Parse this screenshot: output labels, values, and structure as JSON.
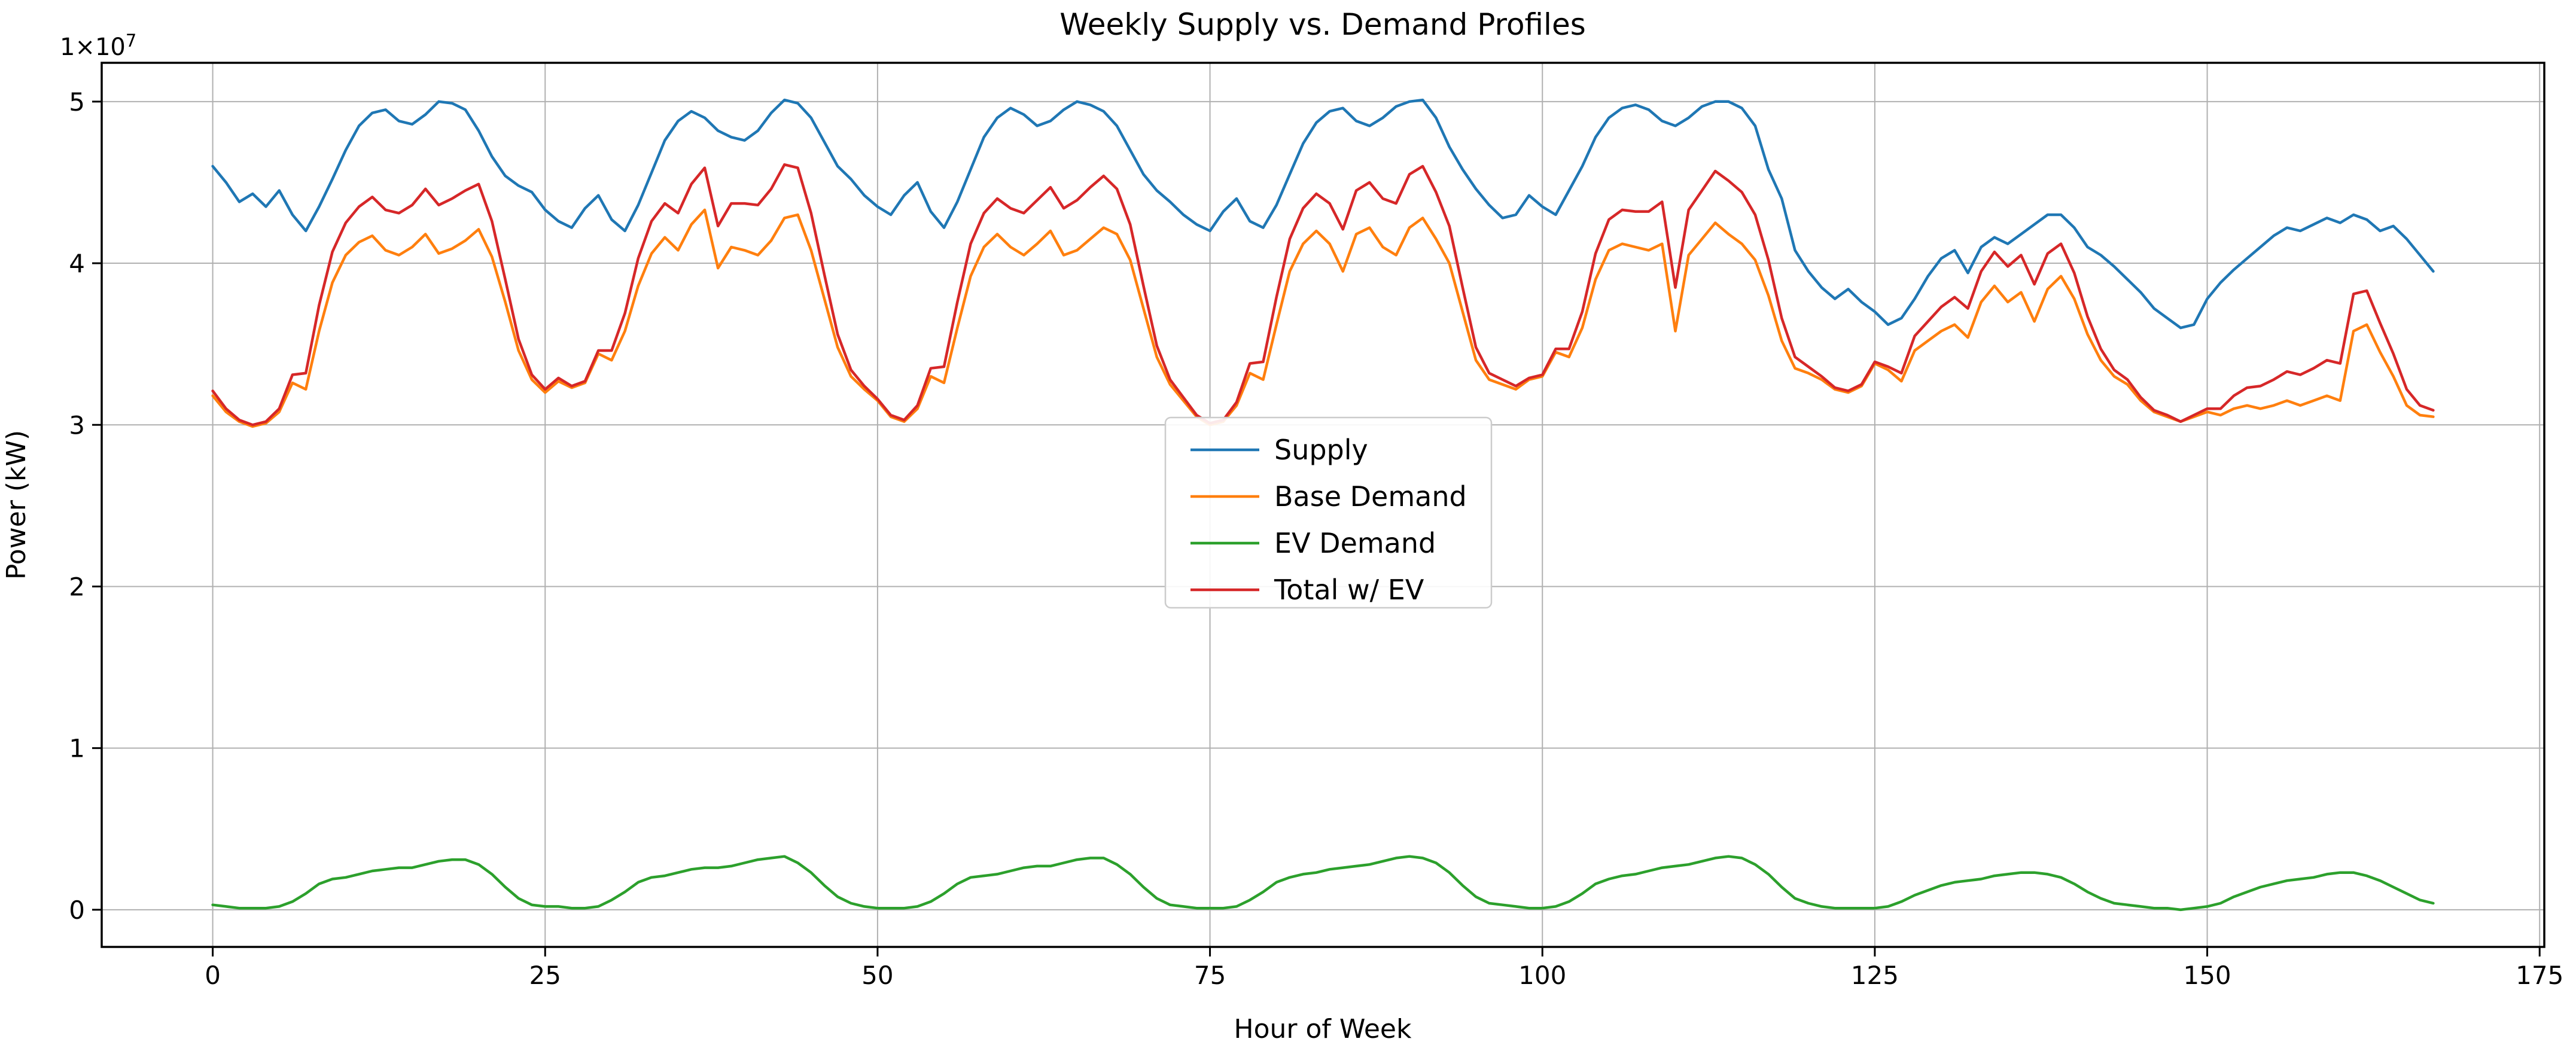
{
  "figure": {
    "title": "Weekly Supply vs. Demand Profiles",
    "xlabel": "Hour of Week",
    "ylabel": "Power (kW)",
    "offset": {
      "mantissa": "1×10",
      "exponent": "7"
    }
  },
  "chart_data": {
    "type": "line",
    "title": "Weekly Supply vs. Demand Profiles",
    "xlabel": "Hour of Week",
    "ylabel": "Power (kW)",
    "y_scale_note": "values in units of 1e7 kW (axis offset text 1×10⁷)",
    "grid": true,
    "legend_position": "center",
    "xlim": [
      -8.35,
      175.35
    ],
    "ylim": [
      -0.23,
      5.24
    ],
    "xticks": [
      0,
      25,
      50,
      75,
      100,
      125,
      150,
      175
    ],
    "yticks": [
      0,
      1,
      2,
      3,
      4,
      5
    ],
    "x_hours": {
      "start": 0,
      "end": 167,
      "step": 1
    },
    "colors": {
      "grid": "#b0b0b0",
      "axes": "#000000",
      "legend_edge": "#cccccc"
    },
    "series": [
      {
        "name": "Supply",
        "color": "#1f77b4",
        "values": [
          4.6,
          4.5,
          4.38,
          4.43,
          4.35,
          4.45,
          4.3,
          4.2,
          4.35,
          4.52,
          4.7,
          4.85,
          4.93,
          4.95,
          4.88,
          4.86,
          4.92,
          5.0,
          4.99,
          4.95,
          4.82,
          4.66,
          4.54,
          4.48,
          4.44,
          4.33,
          4.26,
          4.22,
          4.34,
          4.42,
          4.27,
          4.2,
          4.36,
          4.56,
          4.76,
          4.88,
          4.94,
          4.9,
          4.82,
          4.78,
          4.76,
          4.82,
          4.93,
          5.01,
          4.99,
          4.9,
          4.75,
          4.6,
          4.52,
          4.42,
          4.35,
          4.3,
          4.42,
          4.5,
          4.32,
          4.22,
          4.38,
          4.58,
          4.78,
          4.9,
          4.96,
          4.92,
          4.85,
          4.88,
          4.95,
          5.0,
          4.98,
          4.94,
          4.85,
          4.7,
          4.55,
          4.45,
          4.38,
          4.3,
          4.24,
          4.2,
          4.32,
          4.4,
          4.26,
          4.22,
          4.36,
          4.55,
          4.74,
          4.87,
          4.94,
          4.96,
          4.88,
          4.85,
          4.9,
          4.97,
          5.0,
          5.01,
          4.9,
          4.72,
          4.58,
          4.46,
          4.36,
          4.28,
          4.3,
          4.42,
          4.35,
          4.3,
          4.45,
          4.6,
          4.78,
          4.9,
          4.96,
          4.98,
          4.95,
          4.88,
          4.85,
          4.9,
          4.97,
          5.0,
          5.0,
          4.96,
          4.85,
          4.58,
          4.4,
          4.08,
          3.95,
          3.85,
          3.78,
          3.84,
          3.76,
          3.7,
          3.62,
          3.66,
          3.78,
          3.92,
          4.03,
          4.08,
          3.94,
          4.1,
          4.16,
          4.12,
          4.18,
          4.24,
          4.3,
          4.3,
          4.22,
          4.1,
          4.05,
          3.98,
          3.9,
          3.82,
          3.72,
          3.66,
          3.6,
          3.62,
          3.78,
          3.88,
          3.96,
          4.03,
          4.1,
          4.17,
          4.22,
          4.2,
          4.24,
          4.28,
          4.25,
          4.3,
          4.27,
          4.2,
          4.23,
          4.15,
          4.05,
          3.95
        ]
      },
      {
        "name": "Base Demand",
        "color": "#ff7f0e",
        "values": [
          3.18,
          3.08,
          3.02,
          2.99,
          3.01,
          3.08,
          3.26,
          3.22,
          3.58,
          3.88,
          4.05,
          4.13,
          4.17,
          4.08,
          4.05,
          4.1,
          4.18,
          4.06,
          4.09,
          4.14,
          4.21,
          4.04,
          3.76,
          3.46,
          3.28,
          3.2,
          3.27,
          3.23,
          3.26,
          3.44,
          3.4,
          3.58,
          3.86,
          4.06,
          4.16,
          4.08,
          4.24,
          4.33,
          3.97,
          4.1,
          4.08,
          4.05,
          4.14,
          4.28,
          4.3,
          4.08,
          3.78,
          3.48,
          3.3,
          3.22,
          3.15,
          3.05,
          3.02,
          3.1,
          3.3,
          3.26,
          3.6,
          3.92,
          4.1,
          4.18,
          4.1,
          4.05,
          4.12,
          4.2,
          4.05,
          4.08,
          4.15,
          4.22,
          4.18,
          4.02,
          3.72,
          3.42,
          3.25,
          3.15,
          3.05,
          3.0,
          3.02,
          3.12,
          3.32,
          3.28,
          3.62,
          3.95,
          4.12,
          4.2,
          4.12,
          3.95,
          4.18,
          4.22,
          4.1,
          4.05,
          4.22,
          4.28,
          4.15,
          4.0,
          3.7,
          3.4,
          3.28,
          3.25,
          3.22,
          3.28,
          3.3,
          3.45,
          3.42,
          3.6,
          3.9,
          4.08,
          4.12,
          4.1,
          4.08,
          4.12,
          3.58,
          4.05,
          4.15,
          4.25,
          4.18,
          4.12,
          4.02,
          3.8,
          3.52,
          3.35,
          3.32,
          3.28,
          3.22,
          3.2,
          3.24,
          3.38,
          3.34,
          3.27,
          3.46,
          3.52,
          3.58,
          3.62,
          3.54,
          3.76,
          3.86,
          3.76,
          3.82,
          3.64,
          3.84,
          3.92,
          3.78,
          3.56,
          3.4,
          3.3,
          3.25,
          3.15,
          3.08,
          3.05,
          3.02,
          3.05,
          3.08,
          3.06,
          3.1,
          3.12,
          3.1,
          3.12,
          3.15,
          3.12,
          3.15,
          3.18,
          3.15,
          3.58,
          3.62,
          3.45,
          3.3,
          3.12,
          3.06,
          3.05
        ]
      },
      {
        "name": "EV Demand",
        "color": "#2ca02c",
        "values": [
          0.03,
          0.02,
          0.01,
          0.01,
          0.01,
          0.02,
          0.05,
          0.1,
          0.16,
          0.19,
          0.2,
          0.22,
          0.24,
          0.25,
          0.26,
          0.26,
          0.28,
          0.3,
          0.31,
          0.31,
          0.28,
          0.22,
          0.14,
          0.07,
          0.03,
          0.02,
          0.02,
          0.01,
          0.01,
          0.02,
          0.06,
          0.11,
          0.17,
          0.2,
          0.21,
          0.23,
          0.25,
          0.26,
          0.26,
          0.27,
          0.29,
          0.31,
          0.32,
          0.33,
          0.29,
          0.23,
          0.15,
          0.08,
          0.04,
          0.02,
          0.01,
          0.01,
          0.01,
          0.02,
          0.05,
          0.1,
          0.16,
          0.2,
          0.21,
          0.22,
          0.24,
          0.26,
          0.27,
          0.27,
          0.29,
          0.31,
          0.32,
          0.32,
          0.28,
          0.22,
          0.14,
          0.07,
          0.03,
          0.02,
          0.01,
          0.01,
          0.01,
          0.02,
          0.06,
          0.11,
          0.17,
          0.2,
          0.22,
          0.23,
          0.25,
          0.26,
          0.27,
          0.28,
          0.3,
          0.32,
          0.33,
          0.32,
          0.29,
          0.23,
          0.15,
          0.08,
          0.04,
          0.03,
          0.02,
          0.01,
          0.01,
          0.02,
          0.05,
          0.1,
          0.16,
          0.19,
          0.21,
          0.22,
          0.24,
          0.26,
          0.27,
          0.28,
          0.3,
          0.32,
          0.33,
          0.32,
          0.28,
          0.22,
          0.14,
          0.07,
          0.04,
          0.02,
          0.01,
          0.01,
          0.01,
          0.01,
          0.02,
          0.05,
          0.09,
          0.12,
          0.15,
          0.17,
          0.18,
          0.19,
          0.21,
          0.22,
          0.23,
          0.23,
          0.22,
          0.2,
          0.16,
          0.11,
          0.07,
          0.04,
          0.03,
          0.02,
          0.01,
          0.01,
          0.0,
          0.01,
          0.02,
          0.04,
          0.08,
          0.11,
          0.14,
          0.16,
          0.18,
          0.19,
          0.2,
          0.22,
          0.23,
          0.23,
          0.21,
          0.18,
          0.14,
          0.1,
          0.06,
          0.04
        ]
      },
      {
        "name": "Total w/ EV",
        "color": "#d62728",
        "values": [
          3.21,
          3.1,
          3.03,
          3.0,
          3.02,
          3.1,
          3.31,
          3.32,
          3.74,
          4.07,
          4.25,
          4.35,
          4.41,
          4.33,
          4.31,
          4.36,
          4.46,
          4.36,
          4.4,
          4.45,
          4.49,
          4.26,
          3.9,
          3.53,
          3.31,
          3.22,
          3.29,
          3.24,
          3.27,
          3.46,
          3.46,
          3.69,
          4.03,
          4.26,
          4.37,
          4.31,
          4.49,
          4.59,
          4.23,
          4.37,
          4.37,
          4.36,
          4.46,
          4.61,
          4.59,
          4.31,
          3.93,
          3.56,
          3.34,
          3.24,
          3.16,
          3.06,
          3.03,
          3.12,
          3.35,
          3.36,
          3.76,
          4.12,
          4.31,
          4.4,
          4.34,
          4.31,
          4.39,
          4.47,
          4.34,
          4.39,
          4.47,
          4.54,
          4.46,
          4.24,
          3.86,
          3.49,
          3.28,
          3.17,
          3.06,
          3.01,
          3.03,
          3.14,
          3.38,
          3.39,
          3.79,
          4.15,
          4.34,
          4.43,
          4.37,
          4.21,
          4.45,
          4.5,
          4.4,
          4.37,
          4.55,
          4.6,
          4.44,
          4.23,
          3.85,
          3.48,
          3.32,
          3.28,
          3.24,
          3.29,
          3.31,
          3.47,
          3.47,
          3.7,
          4.06,
          4.27,
          4.33,
          4.32,
          4.32,
          4.38,
          3.85,
          4.33,
          4.45,
          4.57,
          4.51,
          4.44,
          4.3,
          4.02,
          3.66,
          3.42,
          3.36,
          3.3,
          3.23,
          3.21,
          3.25,
          3.39,
          3.36,
          3.32,
          3.55,
          3.64,
          3.73,
          3.79,
          3.72,
          3.95,
          4.07,
          3.98,
          4.05,
          3.87,
          4.06,
          4.12,
          3.94,
          3.67,
          3.47,
          3.34,
          3.28,
          3.17,
          3.09,
          3.06,
          3.02,
          3.06,
          3.1,
          3.1,
          3.18,
          3.23,
          3.24,
          3.28,
          3.33,
          3.31,
          3.35,
          3.4,
          3.38,
          3.81,
          3.83,
          3.63,
          3.44,
          3.22,
          3.12,
          3.09
        ]
      }
    ]
  }
}
